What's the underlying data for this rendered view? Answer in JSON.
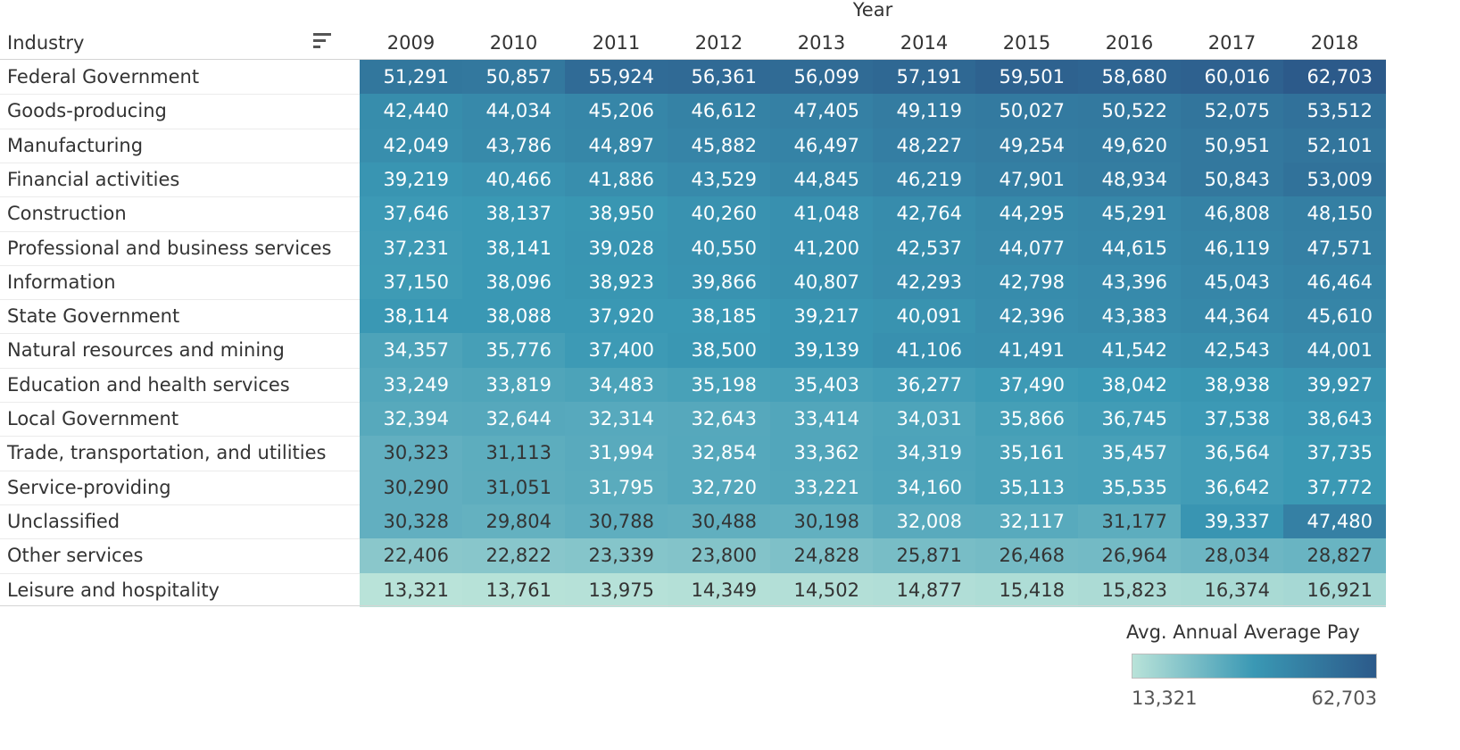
{
  "chart_data": {
    "type": "heatmap",
    "column_title": "Year",
    "row_header": "Industry",
    "columns": [
      "2009",
      "2010",
      "2011",
      "2012",
      "2013",
      "2014",
      "2015",
      "2016",
      "2017",
      "2018"
    ],
    "rows": [
      {
        "label": "Federal Government",
        "values": [
          51291,
          50857,
          55924,
          56361,
          56099,
          57191,
          59501,
          58680,
          60016,
          62703
        ]
      },
      {
        "label": "Goods-producing",
        "values": [
          42440,
          44034,
          45206,
          46612,
          47405,
          49119,
          50027,
          50522,
          52075,
          53512
        ]
      },
      {
        "label": "Manufacturing",
        "values": [
          42049,
          43786,
          44897,
          45882,
          46497,
          48227,
          49254,
          49620,
          50951,
          52101
        ]
      },
      {
        "label": "Financial activities",
        "values": [
          39219,
          40466,
          41886,
          43529,
          44845,
          46219,
          47901,
          48934,
          50843,
          53009
        ]
      },
      {
        "label": "Construction",
        "values": [
          37646,
          38137,
          38950,
          40260,
          41048,
          42764,
          44295,
          45291,
          46808,
          48150
        ]
      },
      {
        "label": "Professional and business services",
        "values": [
          37231,
          38141,
          39028,
          40550,
          41200,
          42537,
          44077,
          44615,
          46119,
          47571
        ]
      },
      {
        "label": "Information",
        "values": [
          37150,
          38096,
          38923,
          39866,
          40807,
          42293,
          42798,
          43396,
          45043,
          46464
        ]
      },
      {
        "label": "State Government",
        "values": [
          38114,
          38088,
          37920,
          38185,
          39217,
          40091,
          42396,
          43383,
          44364,
          45610
        ]
      },
      {
        "label": "Natural resources and mining",
        "values": [
          34357,
          35776,
          37400,
          38500,
          39139,
          41106,
          41491,
          41542,
          42543,
          44001
        ]
      },
      {
        "label": "Education and health services",
        "values": [
          33249,
          33819,
          34483,
          35198,
          35403,
          36277,
          37490,
          38042,
          38938,
          39927
        ]
      },
      {
        "label": "Local Government",
        "values": [
          32394,
          32644,
          32314,
          32643,
          33414,
          34031,
          35866,
          36745,
          37538,
          38643
        ]
      },
      {
        "label": "Trade, transportation, and utilities",
        "values": [
          30323,
          31113,
          31994,
          32854,
          33362,
          34319,
          35161,
          35457,
          36564,
          37735
        ]
      },
      {
        "label": "Service-providing",
        "values": [
          30290,
          31051,
          31795,
          32720,
          33221,
          34160,
          35113,
          35535,
          36642,
          37772
        ]
      },
      {
        "label": "Unclassified",
        "values": [
          30328,
          29804,
          30788,
          30488,
          30198,
          32008,
          32117,
          31177,
          39337,
          47480
        ]
      },
      {
        "label": "Other services",
        "values": [
          22406,
          22822,
          23339,
          23800,
          24828,
          25871,
          26468,
          26964,
          28034,
          28827
        ]
      },
      {
        "label": "Leisure and hospitality",
        "values": [
          13321,
          13761,
          13975,
          14349,
          14502,
          14877,
          15418,
          15823,
          16374,
          16921
        ]
      }
    ],
    "legend": {
      "title": "Avg. Annual Average Pay",
      "min_label": "13,321",
      "max_label": "62,703",
      "min": 13321,
      "max": 62703,
      "colors": [
        "#b9e3d9",
        "#3a98b4",
        "#2c5a8a"
      ]
    }
  },
  "icons": {
    "sort": "sort-descending-icon"
  }
}
